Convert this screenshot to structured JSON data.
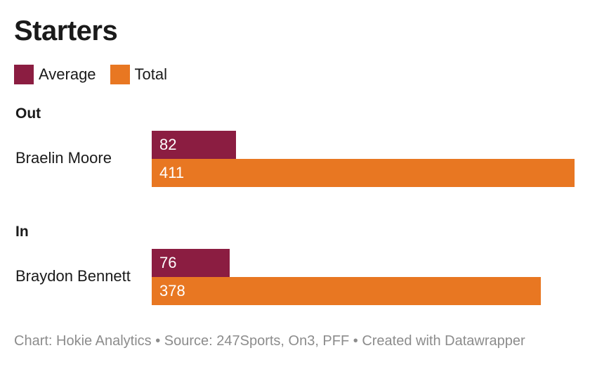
{
  "chart_data": {
    "type": "bar",
    "orientation": "horizontal",
    "title": "Starters",
    "legend": [
      {
        "name": "Average",
        "color": "#8B1D41"
      },
      {
        "name": "Total",
        "color": "#E87722"
      }
    ],
    "groups": [
      {
        "label": "Out",
        "player": "Braelin Moore",
        "average": 82,
        "total": 411
      },
      {
        "label": "In",
        "player": "Braydon Bennett",
        "average": 76,
        "total": 378
      }
    ],
    "xlim": [
      0,
      411
    ]
  },
  "footer": "Chart: Hokie Analytics • Source: 247Sports, On3, PFF • Created with Datawrapper"
}
